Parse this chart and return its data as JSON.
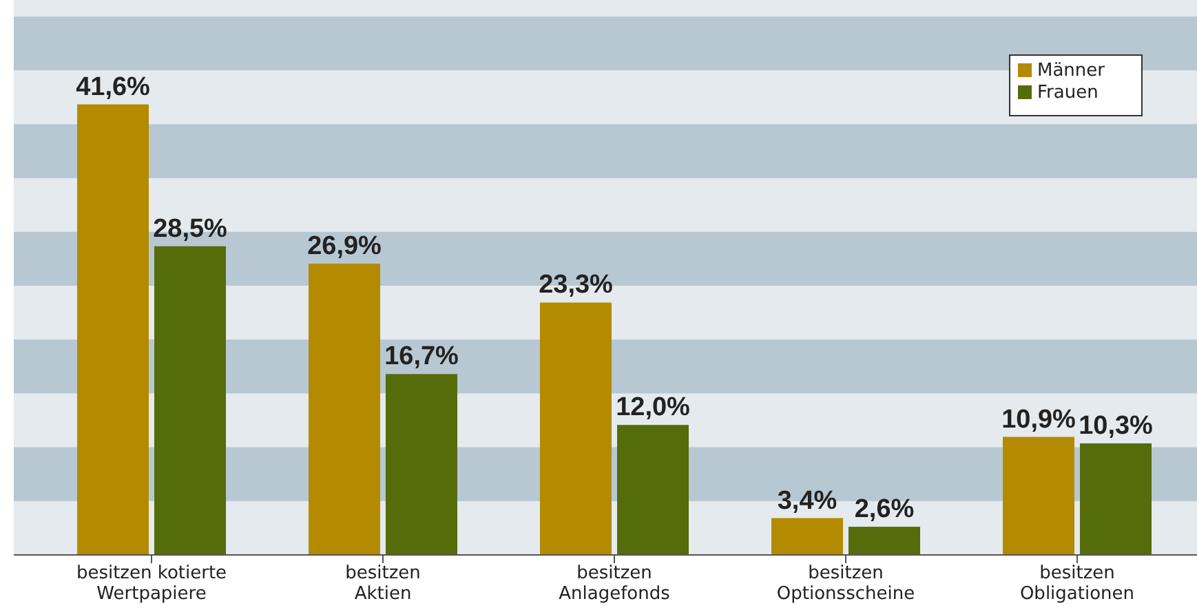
{
  "chart_data": {
    "type": "bar",
    "categories": [
      "besitzen kotierte\nWertpapiere",
      "besitzen\nAktien",
      "besitzen\nAnlagefonds",
      "besitzen\nOptionsscheine",
      "besitzen\nObligationen"
    ],
    "series": [
      {
        "name": "Männer",
        "color": "#b38a00",
        "values": [
          41.6,
          26.9,
          23.3,
          3.4,
          10.9
        ],
        "value_labels": [
          "41,6%",
          "26,9%",
          "23,3%",
          "3,4%",
          "10,9%"
        ]
      },
      {
        "name": "Frauen",
        "color": "#546c0a",
        "values": [
          28.5,
          16.7,
          12.0,
          2.6,
          10.3
        ],
        "value_labels": [
          "28,5%",
          "16,7%",
          "12,0%",
          "2,6%",
          "10,3%"
        ]
      }
    ],
    "data_labels": false,
    "legend": "top right"
  }
}
